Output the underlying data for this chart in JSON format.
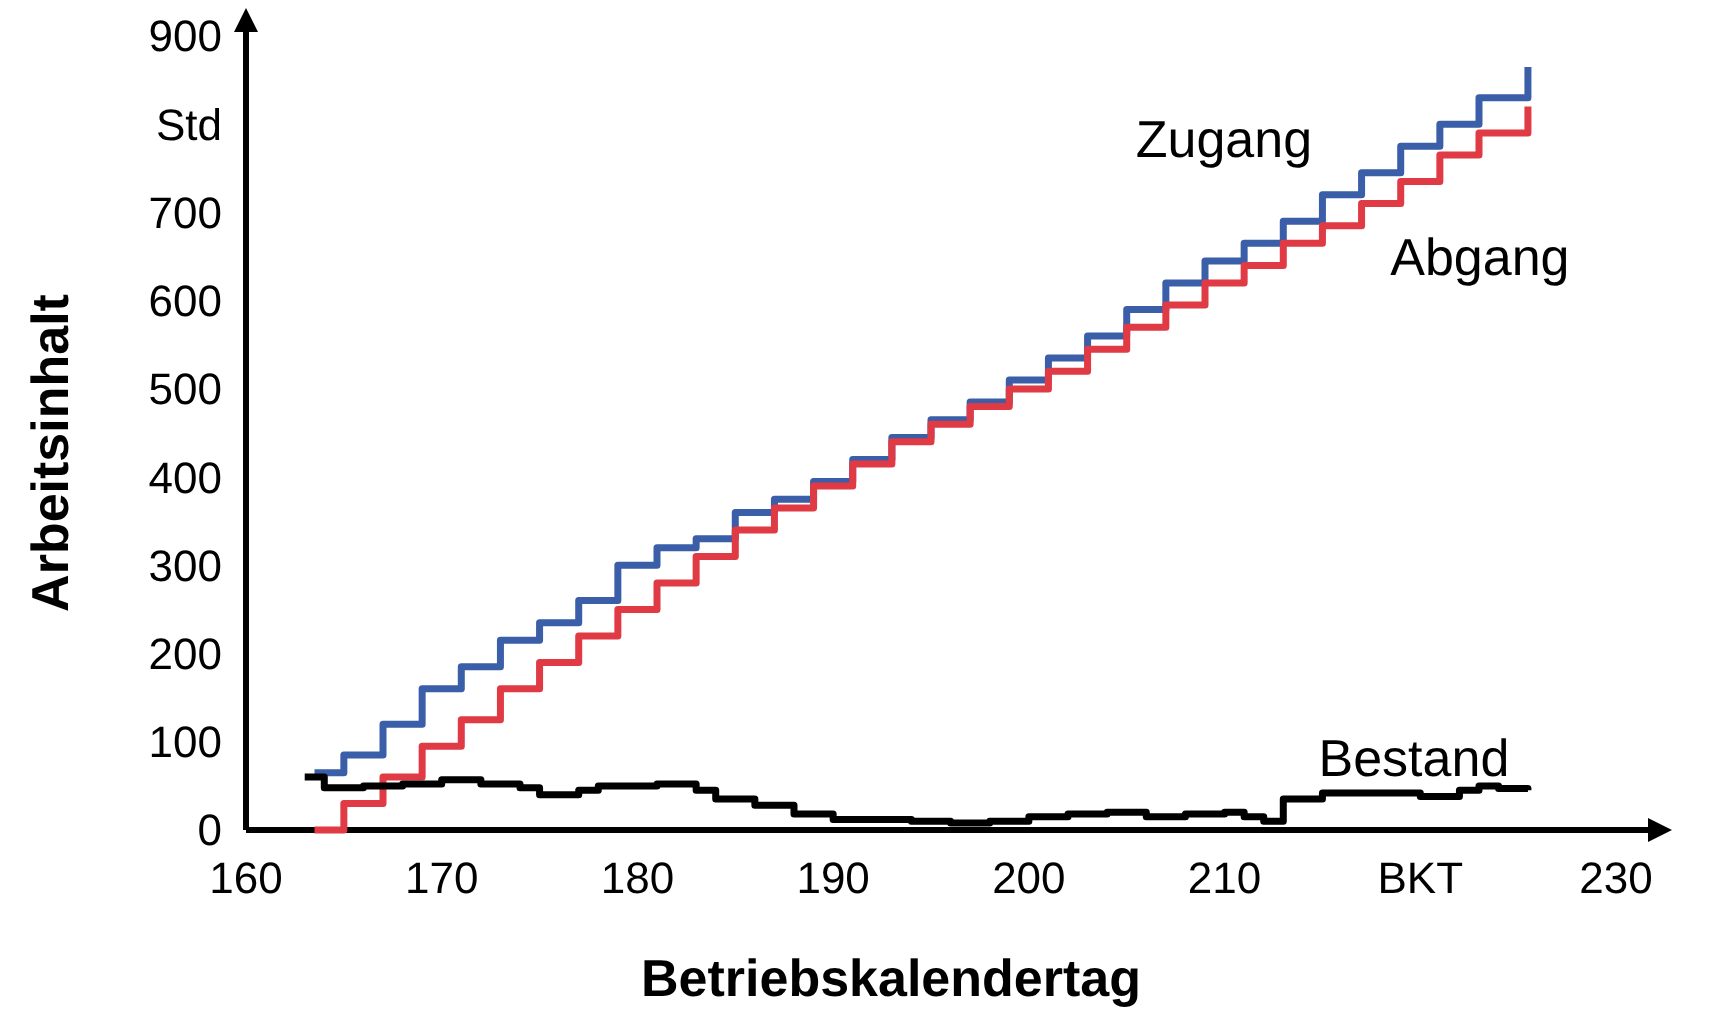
{
  "chart_data": {
    "type": "step",
    "xlabel": "Betriebskalendertag",
    "ylabel": "Arbeitsinhalt",
    "xlim": [
      160,
      230
    ],
    "xticks": [
      160,
      170,
      180,
      190,
      200,
      210,
      {
        "value": 220,
        "label": "BKT"
      },
      230
    ],
    "ylim": [
      0,
      900
    ],
    "yticks": [
      0,
      100,
      200,
      300,
      400,
      500,
      600,
      700,
      {
        "value": 800,
        "label": "Std"
      },
      900
    ],
    "grid": false,
    "series": [
      {
        "name": "Zugang",
        "color": "#3a5ea8",
        "x": [
          163.5,
          165,
          167,
          169,
          171,
          173,
          175,
          177,
          179,
          181,
          183,
          185,
          187,
          189,
          191,
          193,
          195,
          197,
          199,
          201,
          203,
          205,
          207,
          209,
          211,
          213,
          215,
          217,
          219,
          221,
          223,
          225.5
        ],
        "values": [
          65,
          85,
          120,
          160,
          185,
          215,
          235,
          260,
          300,
          320,
          330,
          360,
          375,
          395,
          420,
          445,
          465,
          485,
          510,
          535,
          560,
          590,
          620,
          645,
          665,
          690,
          720,
          745,
          775,
          800,
          830,
          865
        ]
      },
      {
        "name": "Abgang",
        "color": "#e03a45",
        "x": [
          163.5,
          165,
          167,
          169,
          171,
          173,
          175,
          177,
          179,
          181,
          183,
          185,
          187,
          189,
          191,
          193,
          195,
          197,
          199,
          201,
          203,
          205,
          207,
          209,
          211,
          213,
          215,
          217,
          219,
          221,
          223,
          225.5
        ],
        "values": [
          0,
          30,
          60,
          95,
          125,
          160,
          190,
          220,
          250,
          280,
          310,
          340,
          365,
          390,
          415,
          440,
          460,
          480,
          500,
          520,
          545,
          570,
          595,
          620,
          640,
          665,
          685,
          710,
          735,
          765,
          790,
          820
        ]
      },
      {
        "name": "Bestand",
        "color": "#000000",
        "x": [
          163,
          164,
          166,
          168,
          170,
          172,
          174,
          175,
          177,
          178,
          181,
          183,
          184,
          186,
          188,
          190,
          192,
          194,
          196,
          198,
          200,
          202,
          204,
          206,
          208,
          210,
          211,
          212,
          213,
          215,
          218,
          220,
          222,
          223,
          224,
          225.5
        ],
        "values": [
          60,
          48,
          50,
          52,
          57,
          52,
          48,
          40,
          45,
          50,
          52,
          45,
          35,
          28,
          18,
          12,
          12,
          10,
          8,
          10,
          15,
          18,
          20,
          15,
          18,
          20,
          15,
          10,
          35,
          42,
          42,
          38,
          45,
          50,
          47,
          45
        ]
      }
    ]
  }
}
